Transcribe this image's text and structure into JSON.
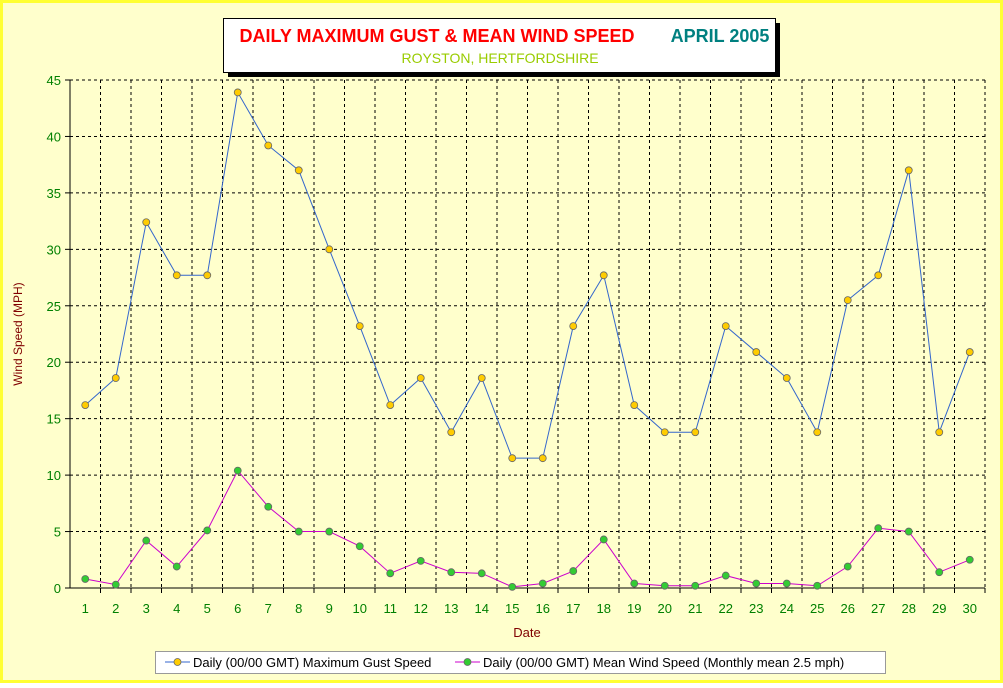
{
  "chart_data": {
    "type": "line",
    "title": "DAILY MAXIMUM GUST & MEAN WIND SPEED",
    "title_period": "APRIL 2005",
    "subtitle": "ROYSTON, HERTFORDSHIRE",
    "x_label": "Date",
    "y_label": "Wind Speed (MPH)",
    "categories": [
      "1",
      "2",
      "3",
      "4",
      "5",
      "6",
      "7",
      "8",
      "9",
      "10",
      "11",
      "12",
      "13",
      "14",
      "15",
      "16",
      "17",
      "18",
      "19",
      "20",
      "21",
      "22",
      "23",
      "24",
      "25",
      "26",
      "27",
      "28",
      "29",
      "30"
    ],
    "series": [
      {
        "name": "Daily (00/00 GMT) Maximum Gust Speed",
        "color": "#3366cc",
        "marker_color": "#ffcc00",
        "values": [
          16.2,
          18.6,
          32.4,
          27.7,
          27.7,
          43.9,
          39.2,
          37.0,
          30.0,
          23.2,
          16.2,
          18.6,
          13.8,
          18.6,
          11.5,
          11.5,
          23.2,
          27.7,
          16.2,
          13.8,
          13.8,
          23.2,
          20.9,
          18.6,
          13.8,
          25.5,
          27.7,
          37.0,
          13.8,
          20.9
        ]
      },
      {
        "name": "Daily (00/00 GMT) Mean Wind Speed (Monthly mean 2.5 mph)",
        "color": "#cc00cc",
        "marker_color": "#33cc33",
        "values": [
          0.8,
          0.3,
          4.2,
          1.9,
          5.1,
          10.4,
          7.2,
          5.0,
          5.0,
          3.7,
          1.3,
          2.4,
          1.4,
          1.3,
          0.1,
          0.4,
          1.5,
          4.3,
          0.4,
          0.2,
          0.2,
          1.1,
          0.4,
          0.4,
          0.2,
          1.9,
          5.3,
          5.0,
          1.4,
          2.5
        ]
      }
    ],
    "ylim": [
      0,
      45
    ],
    "yticks": [
      0,
      5,
      10,
      15,
      20,
      25,
      30,
      35,
      40,
      45
    ],
    "grid": true,
    "legend": "bottom"
  }
}
